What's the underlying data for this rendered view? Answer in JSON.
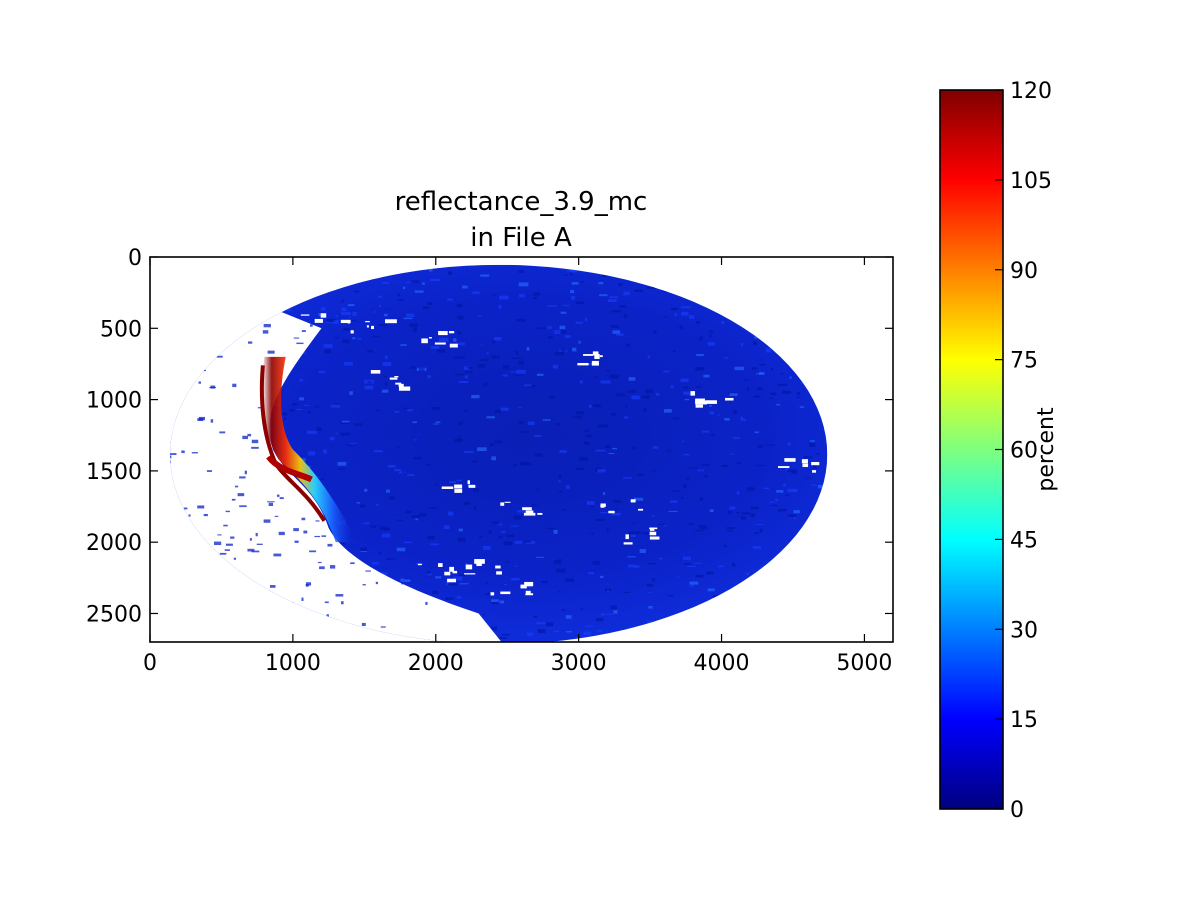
{
  "chart_data": {
    "type": "heatmap",
    "title": "reflectance_3.9_mc\nin File A",
    "title_lines": [
      "reflectance_3.9_mc",
      "in File A"
    ],
    "xlim": [
      0,
      5200
    ],
    "ylim": [
      2700,
      0
    ],
    "y_inverted": true,
    "x_ticks": [
      0,
      1000,
      2000,
      3000,
      4000,
      5000
    ],
    "x_tick_labels": [
      "0",
      "1000",
      "2000",
      "3000",
      "4000",
      "5000"
    ],
    "y_ticks": [
      0,
      500,
      1000,
      1500,
      2000,
      2500
    ],
    "y_tick_labels": [
      "0",
      "500",
      "1000",
      "1500",
      "2000",
      "2500"
    ],
    "grid": false,
    "data_region": {
      "shape": "ellipse",
      "center_x": 2440,
      "center_y": 1385,
      "radius_x": 2300,
      "radius_y": 1330
    },
    "colorbar": {
      "label": "percent",
      "colormap": "jet",
      "vmin": 0,
      "vmax": 120,
      "ticks": [
        0,
        15,
        30,
        45,
        60,
        75,
        90,
        105,
        120
      ],
      "tick_labels": [
        "0",
        "15",
        "30",
        "45",
        "60",
        "75",
        "90",
        "105",
        "120"
      ],
      "stops": [
        "#00007f",
        "#0000ff",
        "#007fff",
        "#00ffff",
        "#7fff7f",
        "#ffff00",
        "#ff7f00",
        "#ff0000",
        "#7f0000"
      ]
    },
    "colors": {
      "background_field": "#0a1fb0",
      "field_light": "#1a3cff",
      "cloud_white": "#ffffff",
      "edge_hot": "#8b0000"
    }
  }
}
